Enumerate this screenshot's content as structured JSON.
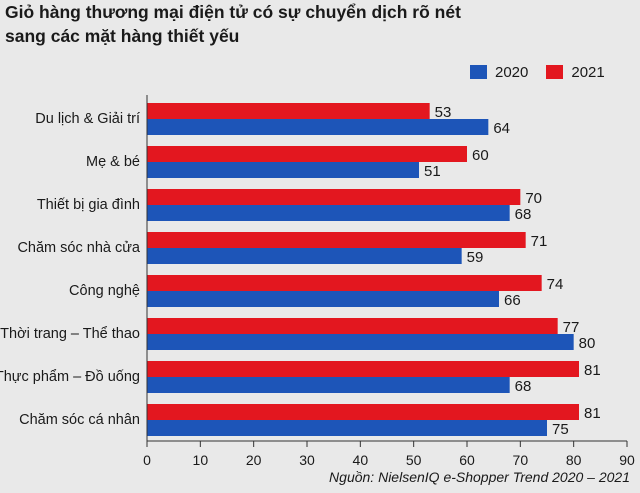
{
  "title_line1": "Giỏ hàng thương mại điện tử có sự chuyển dịch rõ nét",
  "title_line2": "sang các mặt hàng thiết yếu",
  "source": "Nguồn: NielsenIQ e-Shopper Trend 2020 – 2021",
  "colors": {
    "2020": "#1d55b8",
    "2021": "#e3171f",
    "axis": "#333333",
    "background": "#e9e9e9"
  },
  "chart_data": {
    "type": "bar",
    "orientation": "horizontal",
    "title": "Giỏ hàng thương mại điện tử có sự chuyển dịch rõ nét sang các mặt hàng thiết yếu",
    "categories": [
      "Du lịch & Giải trí",
      "Mẹ & bé",
      "Thiết bị gia đình",
      "Chăm sóc nhà cửa",
      "Công nghệ",
      "Thời trang – Thể thao",
      "Thực phẩm – Đồ uống",
      "Chăm sóc cá nhân"
    ],
    "series": [
      {
        "name": "2021",
        "values": [
          53,
          60,
          70,
          71,
          74,
          77,
          81,
          81
        ]
      },
      {
        "name": "2020",
        "values": [
          64,
          51,
          68,
          59,
          66,
          80,
          68,
          75
        ]
      }
    ],
    "legend": [
      "2020",
      "2021"
    ],
    "xlim": [
      0,
      90
    ],
    "xticks": [
      0,
      10,
      20,
      30,
      40,
      50,
      60,
      70,
      80,
      90
    ],
    "grid": false,
    "legend_position": "top-right"
  }
}
